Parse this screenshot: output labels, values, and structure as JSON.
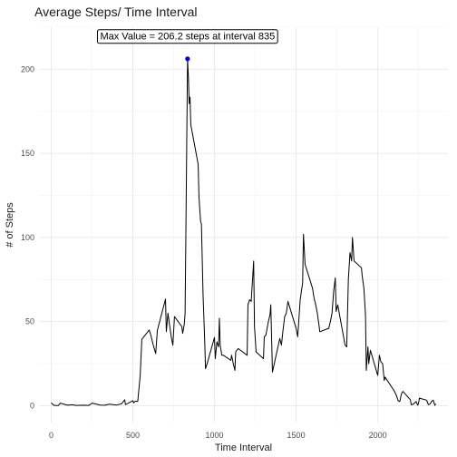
{
  "chart_data": {
    "type": "line",
    "title": "Average Steps/ Time Interval",
    "xlabel": "Time Interval",
    "ylabel": "# of Steps",
    "xlim": [
      -75,
      2430
    ],
    "ylim": [
      -10,
      225
    ],
    "xticks": [
      0,
      500,
      1000,
      1500,
      2000
    ],
    "yticks": [
      0,
      50,
      100,
      150,
      200
    ],
    "grid": true,
    "series": [
      {
        "color": "#000000",
        "points": [
          [
            0,
            1.7
          ],
          [
            15,
            0.3
          ],
          [
            30,
            0.1
          ],
          [
            45,
            0.2
          ],
          [
            55,
            1.5
          ],
          [
            100,
            0.3
          ],
          [
            130,
            0.6
          ],
          [
            150,
            0.2
          ],
          [
            200,
            0.3
          ],
          [
            230,
            0.2
          ],
          [
            250,
            1.5
          ],
          [
            300,
            0.4
          ],
          [
            330,
            0.3
          ],
          [
            355,
            0.9
          ],
          [
            400,
            0.4
          ],
          [
            430,
            1.1
          ],
          [
            450,
            3.5
          ],
          [
            455,
            0.7
          ],
          [
            500,
            3.0
          ],
          [
            505,
            1.7
          ],
          [
            515,
            2.7
          ],
          [
            530,
            2.6
          ],
          [
            545,
            18.0
          ],
          [
            555,
            39.5
          ],
          [
            600,
            45.0
          ],
          [
            610,
            42.0
          ],
          [
            625,
            36.0
          ],
          [
            640,
            31.0
          ],
          [
            650,
            44.8
          ],
          [
            700,
            63.4
          ],
          [
            705,
            44.0
          ],
          [
            715,
            55.0
          ],
          [
            725,
            48.0
          ],
          [
            735,
            41.0
          ],
          [
            745,
            36.0
          ],
          [
            755,
            53.0
          ],
          [
            800,
            47.0
          ],
          [
            805,
            43.0
          ],
          [
            815,
            48.4
          ],
          [
            820,
            55.0
          ],
          [
            835,
            206.2
          ],
          [
            840,
            195.9
          ],
          [
            845,
            179.6
          ],
          [
            850,
            183.4
          ],
          [
            855,
            167.0
          ],
          [
            900,
            143.5
          ],
          [
            905,
            124.0
          ],
          [
            915,
            109.5
          ],
          [
            920,
            108.1
          ],
          [
            930,
            66.0
          ],
          [
            940,
            39.0
          ],
          [
            945,
            22.0
          ],
          [
            955,
            25.0
          ],
          [
            1000,
            40.6
          ],
          [
            1005,
            28.0
          ],
          [
            1015,
            38.0
          ],
          [
            1025,
            35.0
          ],
          [
            1030,
            52.0
          ],
          [
            1035,
            36.0
          ],
          [
            1045,
            30.0
          ],
          [
            1055,
            30.0
          ],
          [
            1100,
            27.0
          ],
          [
            1105,
            30.0
          ],
          [
            1115,
            25.0
          ],
          [
            1125,
            21.0
          ],
          [
            1130,
            32.0
          ],
          [
            1145,
            34.0
          ],
          [
            1200,
            30.0
          ],
          [
            1205,
            60.0
          ],
          [
            1215,
            63.0
          ],
          [
            1225,
            62.0
          ],
          [
            1240,
            86.0
          ],
          [
            1245,
            47.0
          ],
          [
            1255,
            32.0
          ],
          [
            1300,
            28.0
          ],
          [
            1305,
            41.0
          ],
          [
            1315,
            42.0
          ],
          [
            1330,
            50.0
          ],
          [
            1340,
            54.0
          ],
          [
            1345,
            60.0
          ],
          [
            1355,
            20.0
          ],
          [
            1400,
            40.0
          ],
          [
            1410,
            36.0
          ],
          [
            1420,
            45.0
          ],
          [
            1430,
            53.0
          ],
          [
            1440,
            55.0
          ],
          [
            1450,
            62.0
          ],
          [
            1500,
            46.0
          ],
          [
            1510,
            41.0
          ],
          [
            1525,
            63.0
          ],
          [
            1540,
            73.0
          ],
          [
            1545,
            102.0
          ],
          [
            1555,
            84.0
          ],
          [
            1600,
            70.0
          ],
          [
            1610,
            64.0
          ],
          [
            1620,
            60.0
          ],
          [
            1630,
            55.0
          ],
          [
            1640,
            48.0
          ],
          [
            1645,
            44.0
          ],
          [
            1700,
            46.0
          ],
          [
            1710,
            50.0
          ],
          [
            1720,
            55.0
          ],
          [
            1730,
            68.0
          ],
          [
            1740,
            76.0
          ],
          [
            1745,
            56.0
          ],
          [
            1755,
            60.0
          ],
          [
            1800,
            36.0
          ],
          [
            1810,
            35.0
          ],
          [
            1820,
            75.0
          ],
          [
            1830,
            91.0
          ],
          [
            1840,
            86.0
          ],
          [
            1845,
            100.0
          ],
          [
            1855,
            86.0
          ],
          [
            1900,
            82.0
          ],
          [
            1905,
            77.0
          ],
          [
            1915,
            70.0
          ],
          [
            1925,
            54.0
          ],
          [
            1930,
            21.0
          ],
          [
            1940,
            35.0
          ],
          [
            1945,
            25.0
          ],
          [
            1955,
            33.0
          ],
          [
            2000,
            18.0
          ],
          [
            2010,
            30.0
          ],
          [
            2020,
            26.0
          ],
          [
            2030,
            25.0
          ],
          [
            2040,
            15.0
          ],
          [
            2045,
            17.0
          ],
          [
            2100,
            9.0
          ],
          [
            2105,
            8.0
          ],
          [
            2115,
            6.0
          ],
          [
            2125,
            3.0
          ],
          [
            2135,
            2.5
          ],
          [
            2145,
            7.0
          ],
          [
            2150,
            8.0
          ],
          [
            2155,
            8.5
          ],
          [
            2200,
            3.5
          ],
          [
            2205,
            0.6
          ],
          [
            2215,
            0.8
          ],
          [
            2225,
            1.5
          ],
          [
            2235,
            2.5
          ],
          [
            2245,
            0.3
          ],
          [
            2250,
            1.5
          ],
          [
            2255,
            4.5
          ],
          [
            2300,
            3.3
          ],
          [
            2310,
            0.6
          ],
          [
            2320,
            1.0
          ],
          [
            2330,
            2.6
          ],
          [
            2340,
            3.3
          ],
          [
            2350,
            0.2
          ],
          [
            2355,
            1.1
          ]
        ]
      }
    ],
    "max_point": {
      "x": 835,
      "y": 206.2,
      "color": "#0000cc"
    },
    "annotation": {
      "text": "Max Value =  206.2 steps at interval 835",
      "x": 835,
      "y": 220
    }
  }
}
